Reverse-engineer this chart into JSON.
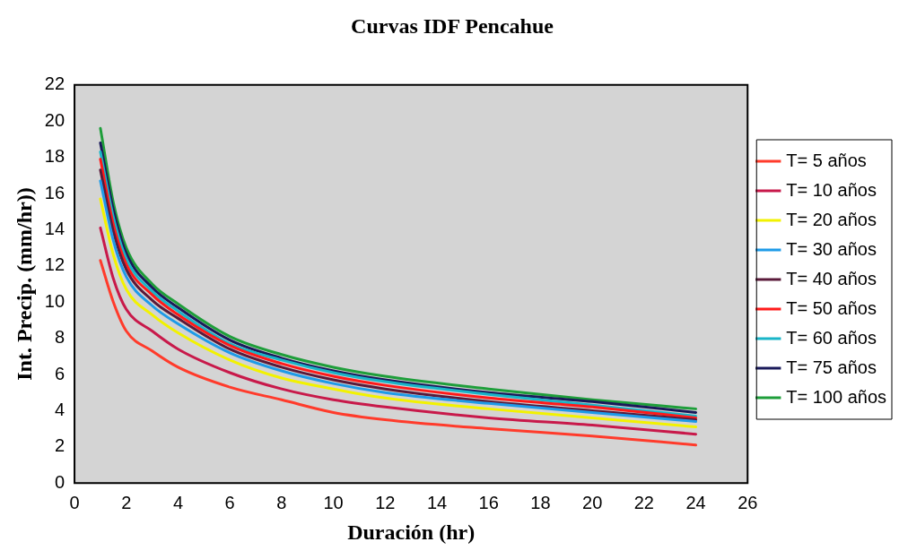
{
  "chart_data": {
    "type": "line",
    "title": "Curvas IDF Pencahue",
    "xlabel": "Duración (hr)",
    "ylabel": "Int. Precip. (mm/hr))",
    "x": [
      1,
      1.5,
      2,
      3,
      4,
      6,
      8,
      10,
      12,
      16,
      20,
      24
    ],
    "xlim": [
      0,
      26
    ],
    "xticks": [
      0,
      2,
      4,
      6,
      8,
      10,
      12,
      14,
      16,
      18,
      20,
      22,
      24,
      26
    ],
    "ylim": [
      0,
      22
    ],
    "yticks": [
      0,
      2,
      4,
      6,
      8,
      10,
      12,
      14,
      16,
      18,
      20,
      22
    ],
    "grid": false,
    "legend": "right",
    "marker": "none",
    "line_style": "solid",
    "series": [
      {
        "name": "T= 5 años",
        "color": "#ff3b2b",
        "values": [
          12.3,
          10.0,
          8.4,
          7.3,
          6.4,
          5.3,
          4.6,
          3.9,
          3.5,
          3.0,
          2.6,
          2.1
        ]
      },
      {
        "name": "T= 10 años",
        "color": "#c8194a",
        "values": [
          14.1,
          11.3,
          9.6,
          8.4,
          7.4,
          6.1,
          5.2,
          4.6,
          4.2,
          3.6,
          3.2,
          2.7
        ]
      },
      {
        "name": "T= 20 años",
        "color": "#f2f200",
        "values": [
          15.7,
          12.6,
          10.7,
          9.3,
          8.3,
          6.8,
          5.8,
          5.2,
          4.7,
          4.1,
          3.6,
          3.1
        ]
      },
      {
        "name": "T= 30 años",
        "color": "#1e9be8",
        "values": [
          16.7,
          13.4,
          11.4,
          9.8,
          8.8,
          7.2,
          6.2,
          5.5,
          5.0,
          4.4,
          3.9,
          3.4
        ]
      },
      {
        "name": "T= 40 años",
        "color": "#5a1a3a",
        "values": [
          17.3,
          13.9,
          11.8,
          10.1,
          9.1,
          7.4,
          6.4,
          5.7,
          5.2,
          4.5,
          4.0,
          3.5
        ]
      },
      {
        "name": "T= 50 años",
        "color": "#ff1a1a",
        "values": [
          17.9,
          14.3,
          12.1,
          10.4,
          9.3,
          7.6,
          6.6,
          5.9,
          5.4,
          4.7,
          4.2,
          3.6
        ]
      },
      {
        "name": "T= 60 años",
        "color": "#19b5c8",
        "values": [
          18.3,
          14.7,
          12.4,
          10.6,
          9.5,
          7.7,
          6.8,
          6.1,
          5.6,
          4.9,
          4.3,
          3.7
        ]
      },
      {
        "name": "T= 75 años",
        "color": "#1a1a5a",
        "values": [
          18.8,
          15.1,
          12.7,
          10.8,
          9.7,
          7.9,
          6.9,
          6.2,
          5.7,
          5.0,
          4.5,
          3.9
        ]
      },
      {
        "name": "T= 100 años",
        "color": "#1e9e3a",
        "values": [
          19.6,
          15.5,
          13.0,
          11.0,
          9.9,
          8.1,
          7.1,
          6.4,
          5.9,
          5.2,
          4.6,
          4.1
        ]
      }
    ]
  }
}
